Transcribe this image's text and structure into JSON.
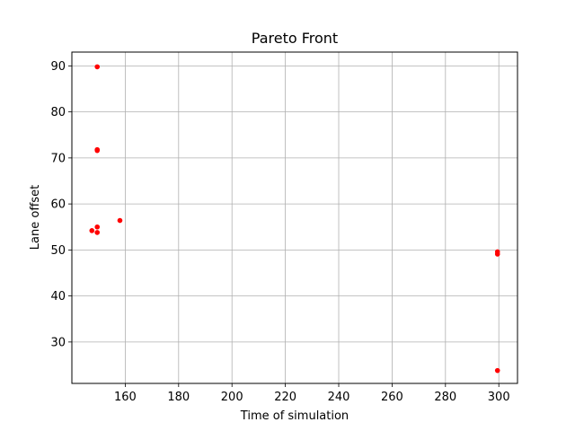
{
  "chart_data": {
    "type": "scatter",
    "title": "Pareto Front",
    "xlabel": "Time of simulation",
    "ylabel": "Lane offset",
    "xlim": [
      140,
      307
    ],
    "ylim": [
      21,
      93
    ],
    "xticks": [
      160,
      180,
      200,
      220,
      240,
      260,
      280,
      300
    ],
    "yticks": [
      30,
      40,
      50,
      60,
      70,
      80,
      90
    ],
    "grid": true,
    "marker_color": "#ff0000",
    "points": [
      {
        "x": 149.5,
        "y": 89.8
      },
      {
        "x": 149.5,
        "y": 71.8
      },
      {
        "x": 149.5,
        "y": 71.6
      },
      {
        "x": 158.0,
        "y": 56.4
      },
      {
        "x": 149.5,
        "y": 55.0
      },
      {
        "x": 147.5,
        "y": 54.2
      },
      {
        "x": 149.5,
        "y": 53.8
      },
      {
        "x": 299.5,
        "y": 49.6
      },
      {
        "x": 299.5,
        "y": 49.1
      },
      {
        "x": 299.5,
        "y": 23.8
      }
    ]
  }
}
